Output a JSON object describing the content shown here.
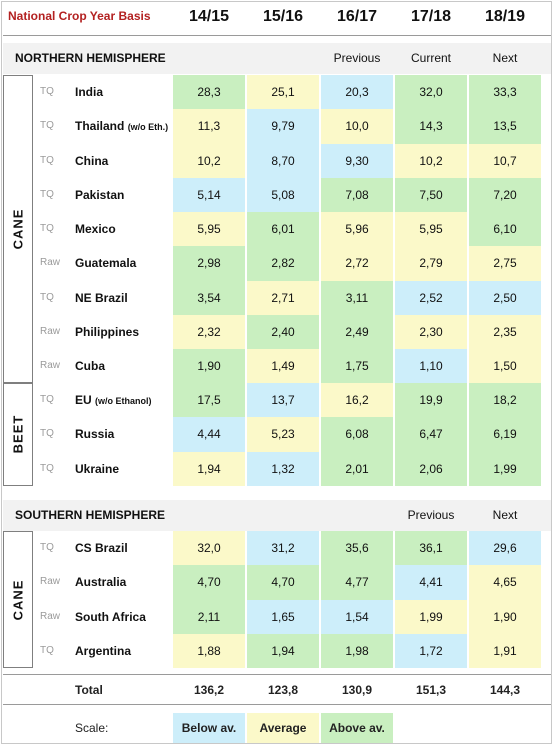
{
  "header": {
    "label": "National Crop Year Basis",
    "years": [
      "14/15",
      "15/16",
      "16/17",
      "17/18",
      "18/19"
    ]
  },
  "chart_data": {
    "type": "table",
    "columns": [
      "14/15",
      "15/16",
      "16/17",
      "17/18",
      "18/19"
    ],
    "sections": [
      {
        "title": "NORTHERN HEMISPHERE",
        "column_labels": [
          "",
          "",
          "Previous",
          "Current",
          "Next"
        ],
        "groups": [
          {
            "crop": "CANE",
            "rows": [
              {
                "tag": "TQ",
                "country": "India",
                "note": "",
                "values": [
                  "28,3",
                  "25,1",
                  "20,3",
                  "32,0",
                  "33,3"
                ],
                "classes": [
                  "above",
                  "avg",
                  "below",
                  "above",
                  "above"
                ]
              },
              {
                "tag": "TQ",
                "country": "Thailand",
                "note": "(w/o Eth.)",
                "values": [
                  "11,3",
                  "9,79",
                  "10,0",
                  "14,3",
                  "13,5"
                ],
                "classes": [
                  "avg",
                  "below",
                  "avg",
                  "above",
                  "above"
                ]
              },
              {
                "tag": "TQ",
                "country": "China",
                "note": "",
                "values": [
                  "10,2",
                  "8,70",
                  "9,30",
                  "10,2",
                  "10,7"
                ],
                "classes": [
                  "avg",
                  "below",
                  "below",
                  "avg",
                  "avg"
                ]
              },
              {
                "tag": "TQ",
                "country": "Pakistan",
                "note": "",
                "values": [
                  "5,14",
                  "5,08",
                  "7,08",
                  "7,50",
                  "7,20"
                ],
                "classes": [
                  "below",
                  "below",
                  "above",
                  "above",
                  "above"
                ]
              },
              {
                "tag": "TQ",
                "country": "Mexico",
                "note": "",
                "values": [
                  "5,95",
                  "6,01",
                  "5,96",
                  "5,95",
                  "6,10"
                ],
                "classes": [
                  "avg",
                  "above",
                  "avg",
                  "avg",
                  "above"
                ]
              },
              {
                "tag": "Raw",
                "country": "Guatemala",
                "note": "",
                "values": [
                  "2,98",
                  "2,82",
                  "2,72",
                  "2,79",
                  "2,75"
                ],
                "classes": [
                  "above",
                  "above",
                  "avg",
                  "avg",
                  "avg"
                ]
              },
              {
                "tag": "TQ",
                "country": "NE Brazil",
                "note": "",
                "values": [
                  "3,54",
                  "2,71",
                  "3,11",
                  "2,52",
                  "2,50"
                ],
                "classes": [
                  "above",
                  "avg",
                  "above",
                  "below",
                  "below"
                ]
              },
              {
                "tag": "Raw",
                "country": "Philippines",
                "note": "",
                "values": [
                  "2,32",
                  "2,40",
                  "2,49",
                  "2,30",
                  "2,35"
                ],
                "classes": [
                  "avg",
                  "above",
                  "above",
                  "avg",
                  "avg"
                ]
              },
              {
                "tag": "Raw",
                "country": "Cuba",
                "note": "",
                "values": [
                  "1,90",
                  "1,49",
                  "1,75",
                  "1,10",
                  "1,50"
                ],
                "classes": [
                  "above",
                  "avg",
                  "above",
                  "below",
                  "avg"
                ]
              }
            ]
          },
          {
            "crop": "BEET",
            "rows": [
              {
                "tag": "TQ",
                "country": "EU",
                "note": "(w/o Ethanol)",
                "values": [
                  "17,5",
                  "13,7",
                  "16,2",
                  "19,9",
                  "18,2"
                ],
                "classes": [
                  "above",
                  "below",
                  "avg",
                  "above",
                  "above"
                ]
              },
              {
                "tag": "TQ",
                "country": "Russia",
                "note": "",
                "values": [
                  "4,44",
                  "5,23",
                  "6,08",
                  "6,47",
                  "6,19"
                ],
                "classes": [
                  "below",
                  "avg",
                  "above",
                  "above",
                  "above"
                ]
              },
              {
                "tag": "TQ",
                "country": "Ukraine",
                "note": "",
                "values": [
                  "1,94",
                  "1,32",
                  "2,01",
                  "2,06",
                  "1,99"
                ],
                "classes": [
                  "avg",
                  "below",
                  "above",
                  "above",
                  "above"
                ]
              }
            ]
          }
        ]
      },
      {
        "title": "SOUTHERN HEMISPHERE",
        "column_labels": [
          "",
          "",
          "",
          "Previous",
          "Next"
        ],
        "groups": [
          {
            "crop": "CANE",
            "rows": [
              {
                "tag": "TQ",
                "country": "CS Brazil",
                "note": "",
                "values": [
                  "32,0",
                  "31,2",
                  "35,6",
                  "36,1",
                  "29,6"
                ],
                "classes": [
                  "avg",
                  "below",
                  "above",
                  "above",
                  "below"
                ]
              },
              {
                "tag": "Raw",
                "country": "Australia",
                "note": "",
                "values": [
                  "4,70",
                  "4,70",
                  "4,77",
                  "4,41",
                  "4,65"
                ],
                "classes": [
                  "above",
                  "above",
                  "above",
                  "below",
                  "avg"
                ]
              },
              {
                "tag": "Raw",
                "country": "South Africa",
                "note": "",
                "values": [
                  "2,11",
                  "1,65",
                  "1,54",
                  "1,99",
                  "1,90"
                ],
                "classes": [
                  "above",
                  "below",
                  "below",
                  "avg",
                  "avg"
                ]
              },
              {
                "tag": "TQ",
                "country": "Argentina",
                "note": "",
                "values": [
                  "1,88",
                  "1,94",
                  "1,98",
                  "1,72",
                  "1,91"
                ],
                "classes": [
                  "avg",
                  "above",
                  "above",
                  "below",
                  "avg"
                ]
              }
            ]
          }
        ]
      }
    ],
    "total": {
      "label": "Total",
      "values": [
        "136,2",
        "123,8",
        "130,9",
        "151,3",
        "144,3"
      ]
    },
    "scale": {
      "label": "Scale:",
      "items": [
        {
          "key": "below",
          "label": "Below av.",
          "color": "#cdeefa"
        },
        {
          "key": "avg",
          "label": "Average",
          "color": "#fbf9c9"
        },
        {
          "key": "above",
          "label": "Above av.",
          "color": "#c9efc0"
        }
      ]
    }
  }
}
